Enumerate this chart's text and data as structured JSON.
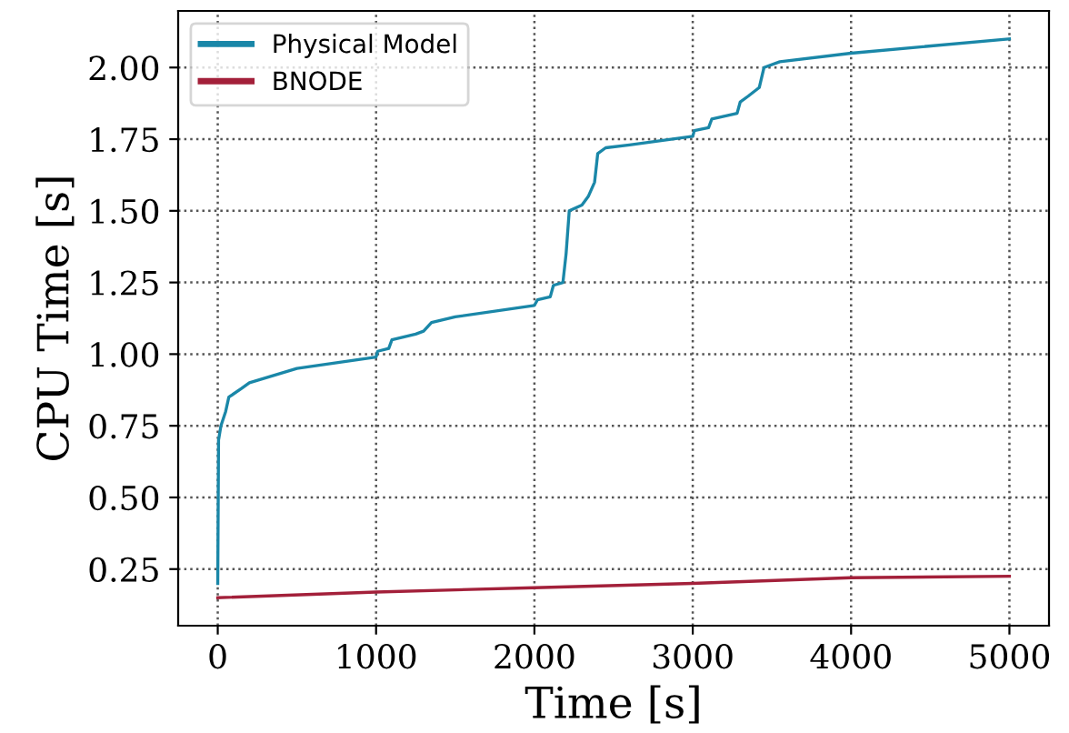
{
  "chart_data": {
    "type": "line",
    "xlabel": "Time [s]",
    "ylabel": "CPU Time [s]",
    "xlim": [
      -250,
      5250
    ],
    "ylim": [
      0.0525,
      2.1975
    ],
    "xticks": [
      {
        "value": 0,
        "label": "0"
      },
      {
        "value": 1000,
        "label": "1000"
      },
      {
        "value": 2000,
        "label": "2000"
      },
      {
        "value": 3000,
        "label": "3000"
      },
      {
        "value": 4000,
        "label": "4000"
      },
      {
        "value": 5000,
        "label": "5000"
      }
    ],
    "yticks": [
      {
        "value": 0.25,
        "label": "0.25"
      },
      {
        "value": 0.5,
        "label": "0.50"
      },
      {
        "value": 0.75,
        "label": "0.75"
      },
      {
        "value": 1.0,
        "label": "1.00"
      },
      {
        "value": 1.25,
        "label": "1.25"
      },
      {
        "value": 1.5,
        "label": "1.50"
      },
      {
        "value": 1.75,
        "label": "1.75"
      },
      {
        "value": 2.0,
        "label": "2.00"
      }
    ],
    "grid": true,
    "legend": "top left",
    "line_style": "solid",
    "marker": "none",
    "series": [
      {
        "name": "Physical Model",
        "color": "#1a87a8",
        "x": [
          0,
          5,
          20,
          50,
          70,
          150,
          200,
          500,
          1000,
          1010,
          1080,
          1100,
          1250,
          1300,
          1350,
          1500,
          2000,
          2020,
          2100,
          2120,
          2180,
          2200,
          2220,
          2300,
          2340,
          2380,
          2400,
          2450,
          2600,
          3000,
          3010,
          3100,
          3120,
          3280,
          3300,
          3350,
          3420,
          3450,
          3550,
          4000,
          5000
        ],
        "values": [
          0.2,
          0.7,
          0.75,
          0.8,
          0.85,
          0.88,
          0.9,
          0.95,
          0.99,
          1.01,
          1.02,
          1.05,
          1.07,
          1.08,
          1.11,
          1.13,
          1.17,
          1.19,
          1.2,
          1.24,
          1.25,
          1.35,
          1.5,
          1.52,
          1.55,
          1.6,
          1.7,
          1.72,
          1.73,
          1.76,
          1.78,
          1.79,
          1.82,
          1.84,
          1.88,
          1.9,
          1.93,
          2.0,
          2.02,
          2.05,
          2.1
        ]
      },
      {
        "name": "BNODE",
        "color": "#a3203a",
        "x": [
          0,
          1000,
          2000,
          3000,
          4000,
          5000
        ],
        "values": [
          0.15,
          0.17,
          0.185,
          0.2,
          0.22,
          0.225
        ]
      }
    ]
  }
}
